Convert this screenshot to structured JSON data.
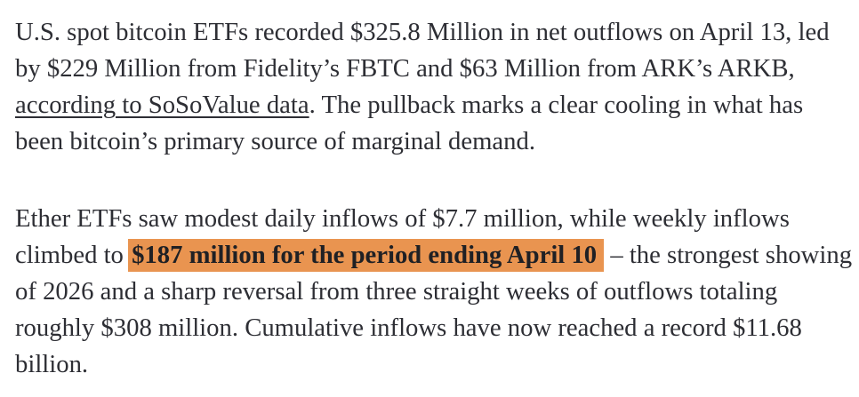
{
  "page": {
    "background": "#ffffff"
  },
  "style": {
    "text_color": "#2d2e34",
    "link_color": "#2d2e34",
    "highlight_bg": "#E99450",
    "highlight_text_color": "#1f2024"
  },
  "article": {
    "paragraphs": [
      {
        "lines": [
          {
            "segments": [
              {
                "style": "normal",
                "text": "U.S. spot bitcoin ETFs recorded $325.8 Million in net outflows on April 13, led"
              }
            ]
          },
          {
            "segments": [
              {
                "style": "normal",
                "text": "by $229 Million from Fidelity’s FBTC and $63 Million from ARK’s ARKB,"
              }
            ]
          },
          {
            "segments": [
              {
                "style": "link",
                "text": "according to SoSoValue data"
              },
              {
                "style": "normal",
                "text": ". The pullback marks a clear cooling in what has"
              }
            ]
          },
          {
            "segments": [
              {
                "style": "normal",
                "text": "been bitcoin’s primary source of marginal demand."
              }
            ]
          }
        ]
      },
      {
        "lines": [
          {
            "segments": [
              {
                "style": "normal",
                "text": "Ether ETFs saw modest daily inflows of $7.7 million, while weekly inflows"
              }
            ]
          },
          {
            "segments": [
              {
                "style": "normal",
                "text": "climbed to "
              },
              {
                "style": "highlight",
                "text": "$187 million for the period ending April 10"
              },
              {
                "style": "normal",
                "text": " – the strongest showing"
              }
            ]
          },
          {
            "segments": [
              {
                "style": "normal",
                "text": "of 2026 and a sharp reversal from three straight weeks of outflows totaling"
              }
            ]
          },
          {
            "segments": [
              {
                "style": "normal",
                "text": "roughly $308 million. Cumulative inflows have now reached a record $11.68"
              }
            ]
          },
          {
            "segments": [
              {
                "style": "normal",
                "text": "billion."
              }
            ]
          }
        ]
      }
    ]
  }
}
